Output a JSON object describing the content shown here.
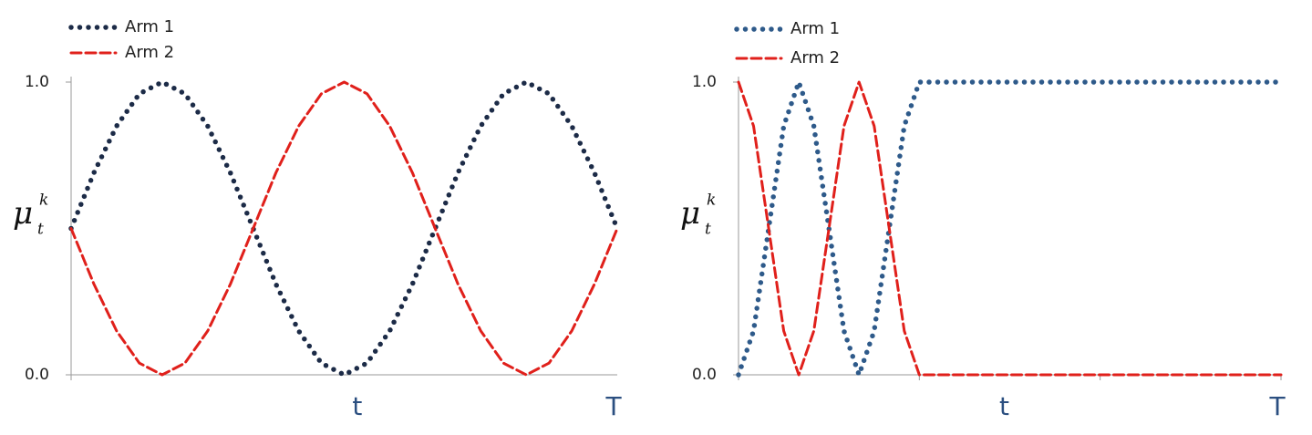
{
  "chart_data": [
    {
      "type": "line",
      "legend": "upper left",
      "grid": false,
      "y_label": {
        "symbol": "μ",
        "sub": "t",
        "sup": "k"
      },
      "x_labels": [
        "t",
        "T"
      ],
      "categories": [
        null,
        null,
        null,
        null,
        null,
        null,
        null,
        null,
        null,
        null,
        null,
        null,
        null,
        null,
        null,
        null,
        null,
        null,
        null,
        null,
        null,
        null,
        null,
        null,
        null
      ],
      "ylim": [
        0,
        1
      ],
      "yticks": [
        {
          "value": 0,
          "label": "0.0"
        },
        {
          "value": 1,
          "label": "1.0"
        }
      ],
      "series": [
        {
          "name": "Arm 1",
          "color": "#1c2b47",
          "style": "dotted",
          "values": [
            0.5,
            0.69,
            0.85,
            0.96,
            1,
            0.96,
            0.85,
            0.69,
            0.5,
            0.31,
            0.15,
            0.04,
            0,
            0.04,
            0.15,
            0.31,
            0.5,
            0.69,
            0.85,
            0.96,
            1,
            0.96,
            0.85,
            0.69,
            0.5
          ]
        },
        {
          "name": "Arm 2",
          "color": "#e0201b",
          "style": "dashed",
          "values": [
            0.5,
            0.31,
            0.15,
            0.04,
            0,
            0.04,
            0.15,
            0.31,
            0.5,
            0.69,
            0.85,
            0.96,
            1,
            0.96,
            0.85,
            0.69,
            0.5,
            0.31,
            0.15,
            0.04,
            0,
            0.04,
            0.15,
            0.31,
            0.5
          ]
        }
      ]
    },
    {
      "type": "line",
      "legend": "upper left",
      "grid": false,
      "y_label": {
        "symbol": "μ",
        "sub": "t",
        "sup": "k"
      },
      "x_labels": [
        "t",
        "T"
      ],
      "categories": [
        null,
        null,
        null,
        null,
        null,
        null,
        null,
        null,
        null,
        null,
        null,
        null,
        null,
        null,
        null,
        null,
        null,
        null,
        null,
        null,
        null,
        null,
        null,
        null,
        null,
        null,
        null,
        null,
        null,
        null,
        null,
        null,
        null,
        null,
        null,
        null,
        null
      ],
      "ylim": [
        0,
        1
      ],
      "yticks": [
        {
          "value": 0,
          "label": "0.0"
        },
        {
          "value": 1,
          "label": "1.0"
        }
      ],
      "series": [
        {
          "name": "Arm 1",
          "color": "#2e5a8a",
          "style": "dotted",
          "values": [
            0,
            0.15,
            0.5,
            0.85,
            1,
            0.85,
            0.5,
            0.15,
            0,
            0.15,
            0.5,
            0.85,
            1,
            1,
            1,
            1,
            1,
            1,
            1,
            1,
            1,
            1,
            1,
            1,
            1,
            1,
            1,
            1,
            1,
            1,
            1,
            1,
            1,
            1,
            1,
            1,
            1
          ]
        },
        {
          "name": "Arm 2",
          "color": "#e0201b",
          "style": "dashed",
          "values": [
            1,
            0.85,
            0.5,
            0.15,
            0,
            0.15,
            0.5,
            0.85,
            1,
            0.85,
            0.5,
            0.15,
            0,
            0,
            0,
            0,
            0,
            0,
            0,
            0,
            0,
            0,
            0,
            0,
            0,
            0,
            0,
            0,
            0,
            0,
            0,
            0,
            0,
            0,
            0,
            0,
            0
          ]
        }
      ]
    }
  ]
}
